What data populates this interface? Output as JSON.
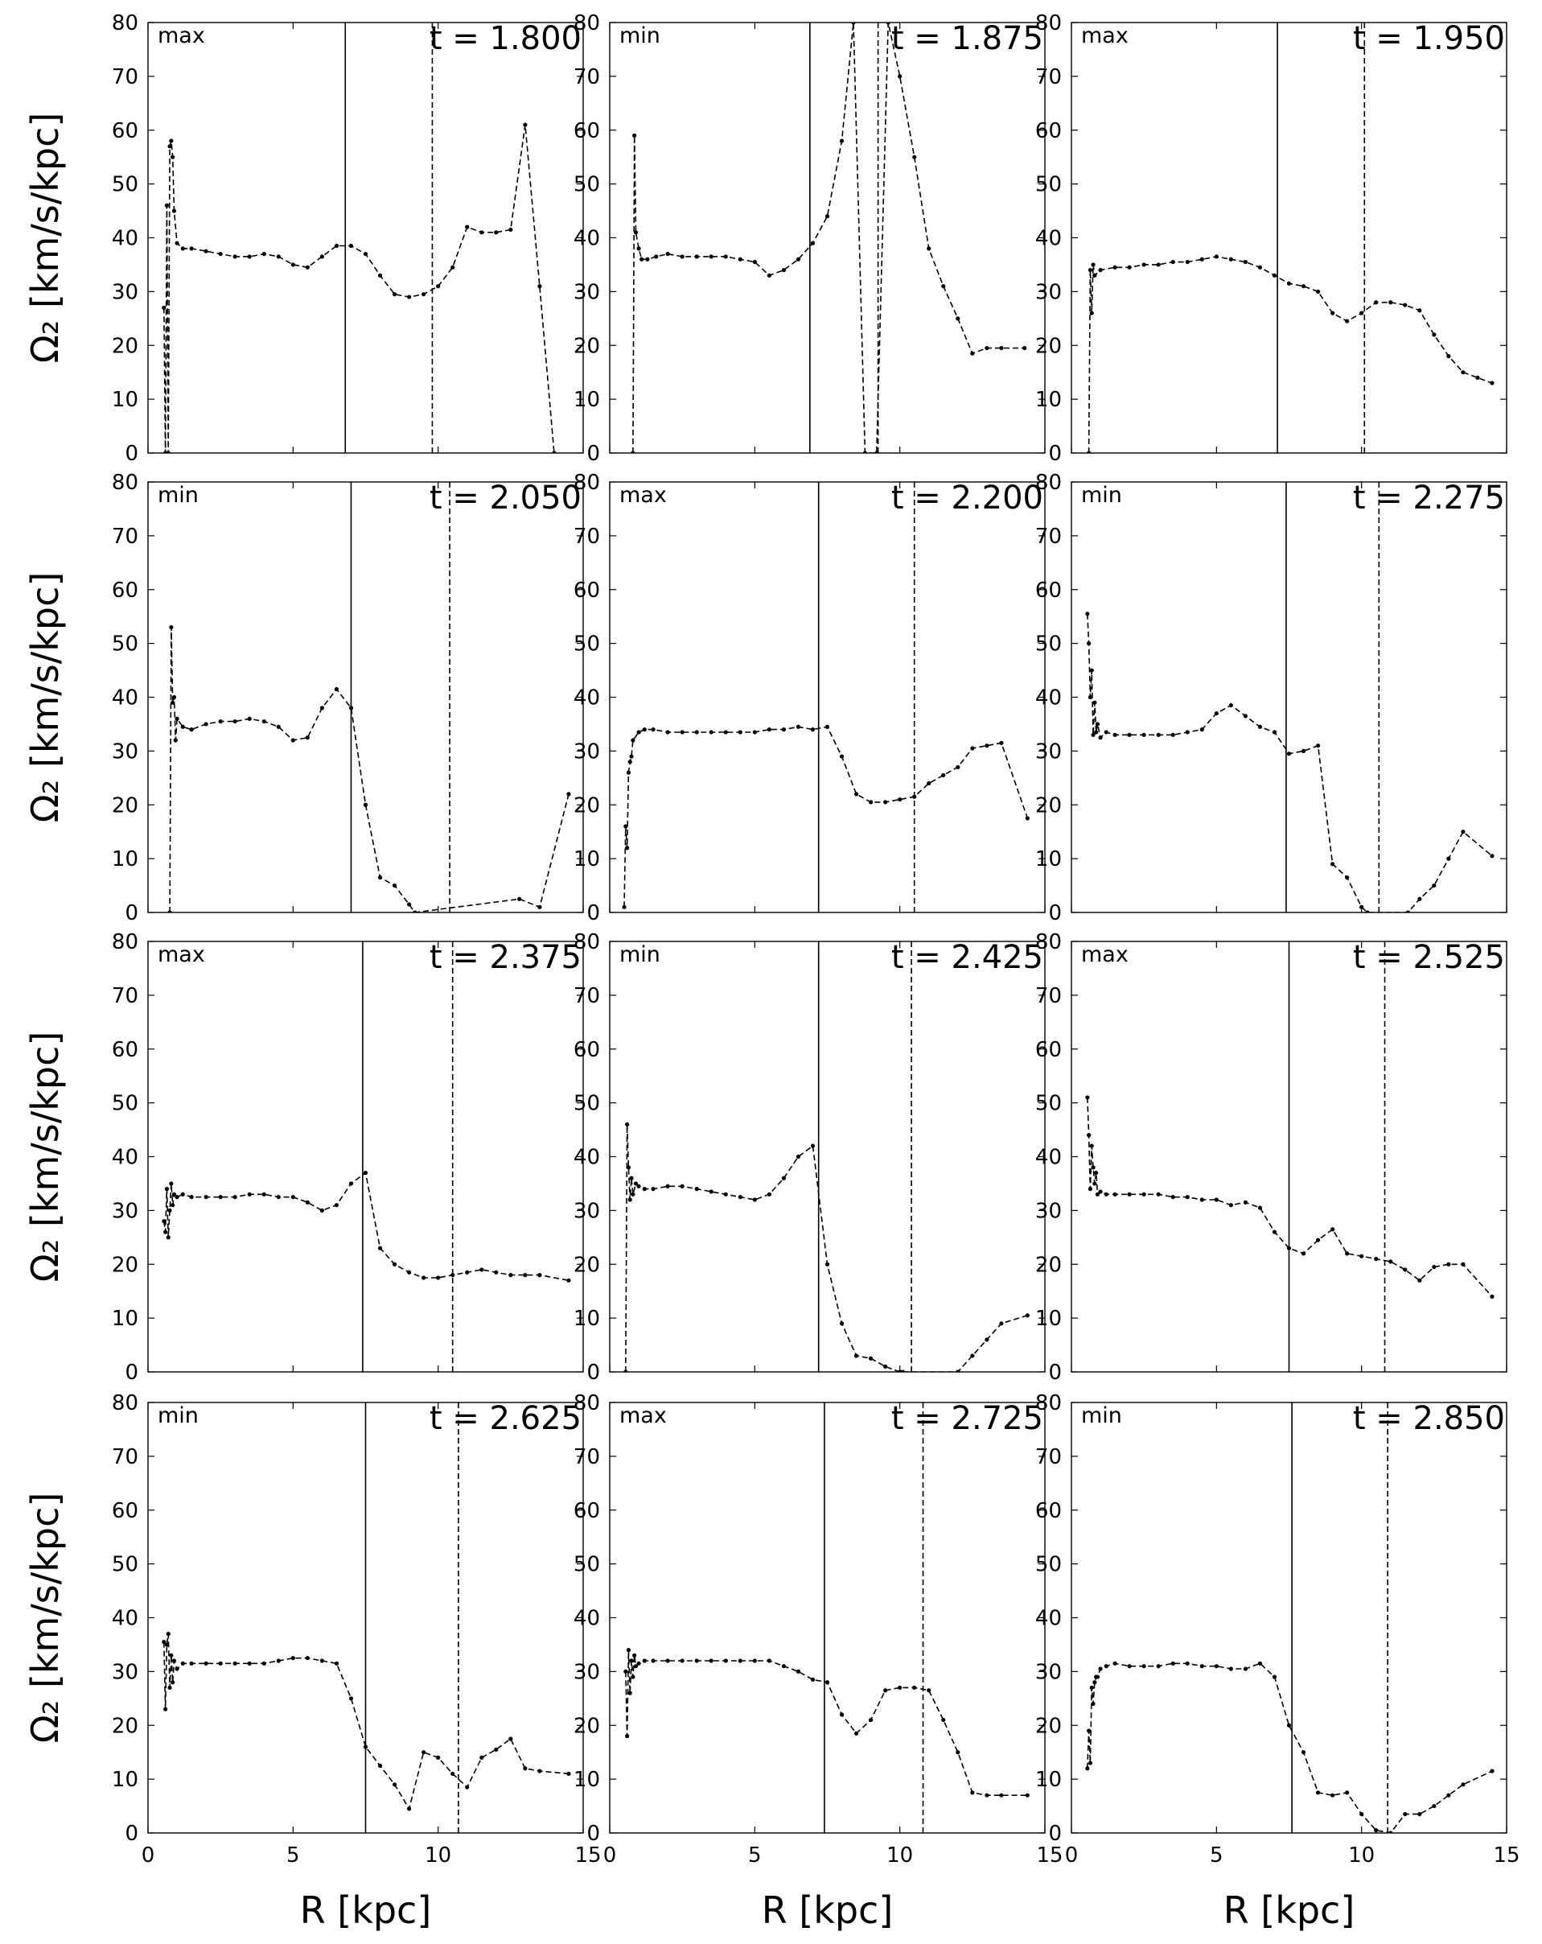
{
  "figure": {
    "ylabel": "Ω₂ [km/s/kpc]",
    "xlabel": "R [kpc]"
  },
  "chart_data": [
    {
      "type": "line",
      "panel_label": "max",
      "time_label": "t = 1.800",
      "xlim": [
        0,
        15
      ],
      "ylim": [
        0,
        80
      ],
      "xticks": [
        0,
        5,
        10,
        15
      ],
      "yticks": [
        0,
        10,
        20,
        30,
        40,
        50,
        60,
        70,
        80
      ],
      "vlines": {
        "solid": 6.8,
        "dashed": 9.8
      },
      "x": [
        0.55,
        0.6,
        0.65,
        0.7,
        0.75,
        0.8,
        0.85,
        0.9,
        1.0,
        1.2,
        1.5,
        2,
        2.5,
        3,
        3.5,
        4,
        4.5,
        5,
        5.5,
        6,
        6.5,
        7,
        7.5,
        8,
        8.5,
        9,
        9.5,
        10,
        10.5,
        11,
        11.5,
        12,
        12.5,
        13,
        13.5,
        14
      ],
      "y": [
        27,
        0,
        46,
        0,
        57,
        58,
        55,
        45,
        39,
        38,
        38,
        37.5,
        37,
        36.5,
        36.5,
        37,
        36.5,
        35,
        34.5,
        36.5,
        38.5,
        38.5,
        37,
        33,
        29.5,
        29,
        29.5,
        31,
        34.5,
        42,
        41,
        41,
        41.5,
        61,
        31,
        0
      ]
    },
    {
      "type": "line",
      "panel_label": "min",
      "time_label": "t = 1.875",
      "xlim": [
        0,
        15
      ],
      "ylim": [
        0,
        80
      ],
      "xticks": [
        0,
        5,
        10,
        15
      ],
      "yticks": [
        0,
        10,
        20,
        30,
        40,
        50,
        60,
        70,
        80
      ],
      "vlines": {
        "solid": 6.9,
        "dashed": 9.25
      },
      "x": [
        0.8,
        0.85,
        0.9,
        1.0,
        1.1,
        1.3,
        1.6,
        2,
        2.5,
        3,
        3.5,
        4,
        4.5,
        5,
        5.5,
        6,
        6.5,
        7,
        7.5,
        8,
        8.4,
        8.8,
        9.2,
        9.6,
        10,
        10.5,
        11,
        11.5,
        12,
        12.5,
        13,
        13.5,
        14.3
      ],
      "y": [
        0,
        59,
        41,
        38,
        36,
        36,
        36.5,
        37,
        36.5,
        36.5,
        36.5,
        36.5,
        36,
        35.5,
        33,
        34,
        36,
        39,
        44,
        58,
        80,
        0,
        0,
        80,
        70,
        55,
        38,
        31,
        25,
        18.5,
        19.5,
        19.5,
        19.5
      ]
    },
    {
      "type": "line",
      "panel_label": "max",
      "time_label": "t = 1.950",
      "xlim": [
        0,
        15
      ],
      "ylim": [
        0,
        80
      ],
      "xticks": [
        0,
        5,
        10,
        15
      ],
      "yticks": [
        0,
        10,
        20,
        30,
        40,
        50,
        60,
        70,
        80
      ],
      "vlines": {
        "solid": 7.1,
        "dashed": 10.1
      },
      "x": [
        0.6,
        0.65,
        0.7,
        0.75,
        0.8,
        1.0,
        1.5,
        2,
        2.5,
        3,
        3.5,
        4,
        4.5,
        5,
        5.5,
        6,
        6.5,
        7,
        7.5,
        8,
        8.5,
        9,
        9.5,
        10,
        10.5,
        11,
        11.5,
        12,
        12.5,
        13,
        13.5,
        14,
        14.5
      ],
      "y": [
        0,
        34,
        26,
        35,
        33,
        34,
        34.5,
        34.5,
        35,
        35,
        35.5,
        35.5,
        36,
        36.5,
        36,
        35.5,
        34.5,
        33,
        31.5,
        31,
        30,
        26,
        24.5,
        26,
        28,
        28,
        27.5,
        26.5,
        22,
        18,
        15,
        14,
        13
      ]
    },
    {
      "type": "line",
      "panel_label": "min",
      "time_label": "t = 2.050",
      "xlim": [
        0,
        15
      ],
      "ylim": [
        0,
        80
      ],
      "xticks": [
        0,
        5,
        10,
        15
      ],
      "yticks": [
        0,
        10,
        20,
        30,
        40,
        50,
        60,
        70,
        80
      ],
      "vlines": {
        "solid": 7.0,
        "dashed": 10.4
      },
      "x": [
        0.75,
        0.8,
        0.85,
        0.9,
        0.95,
        1.0,
        1.2,
        1.5,
        2,
        2.5,
        3,
        3.5,
        4,
        4.5,
        5,
        5.5,
        6,
        6.5,
        7,
        7.5,
        8,
        8.5,
        9,
        9.2,
        12.8,
        13.5,
        14.5
      ],
      "y": [
        0,
        53,
        39,
        40,
        32,
        36,
        34.5,
        34,
        35,
        35.5,
        35.5,
        36,
        35.5,
        34.5,
        32,
        32.5,
        38,
        41.5,
        38,
        20,
        6.5,
        5,
        1.5,
        0,
        2.5,
        1,
        22
      ]
    },
    {
      "type": "line",
      "panel_label": "max",
      "time_label": "t = 2.200",
      "xlim": [
        0,
        15
      ],
      "ylim": [
        0,
        80
      ],
      "xticks": [
        0,
        5,
        10,
        15
      ],
      "yticks": [
        0,
        10,
        20,
        30,
        40,
        50,
        60,
        70,
        80
      ],
      "vlines": {
        "solid": 7.2,
        "dashed": 10.5
      },
      "x": [
        0.5,
        0.55,
        0.6,
        0.65,
        0.7,
        0.75,
        0.8,
        1.0,
        1.2,
        1.5,
        2,
        2.5,
        3,
        3.5,
        4,
        4.5,
        5,
        5.5,
        6,
        6.5,
        7,
        7.5,
        8,
        8.5,
        9,
        9.5,
        10,
        10.5,
        11,
        11.5,
        12,
        12.5,
        13,
        13.5,
        14.4
      ],
      "y": [
        1,
        16,
        12,
        26,
        28,
        29,
        32,
        33.5,
        34,
        34,
        33.5,
        33.5,
        33.5,
        33.5,
        33.5,
        33.5,
        33.5,
        34,
        34,
        34.5,
        34,
        34.5,
        29,
        22,
        20.5,
        20.5,
        21,
        21.5,
        24,
        25.5,
        27,
        30.5,
        31,
        31.5,
        17.5
      ]
    },
    {
      "type": "line",
      "panel_label": "min",
      "time_label": "t = 2.275",
      "xlim": [
        0,
        15
      ],
      "ylim": [
        0,
        80
      ],
      "xticks": [
        0,
        5,
        10,
        15
      ],
      "yticks": [
        0,
        10,
        20,
        30,
        40,
        50,
        60,
        70,
        80
      ],
      "vlines": {
        "solid": 7.4,
        "dashed": 10.6
      },
      "x": [
        0.55,
        0.6,
        0.65,
        0.7,
        0.75,
        0.8,
        0.85,
        0.9,
        1.0,
        1.2,
        1.5,
        2,
        2.5,
        3,
        3.5,
        4,
        4.5,
        5,
        5.5,
        6,
        6.5,
        7,
        7.5,
        8,
        8.5,
        9,
        9.5,
        10,
        10.2,
        11.6,
        12,
        12.5,
        13,
        13.5,
        14.5
      ],
      "y": [
        55.5,
        50,
        40,
        45,
        33,
        39,
        33.5,
        35,
        32.5,
        33.5,
        33,
        33,
        33,
        33,
        33,
        33.5,
        34,
        37,
        38.5,
        36.5,
        34.5,
        33.5,
        29.5,
        30,
        31,
        9,
        6.5,
        1,
        0,
        0,
        2.5,
        5,
        10,
        15,
        10.5
      ]
    },
    {
      "type": "line",
      "panel_label": "max",
      "time_label": "t = 2.375",
      "xlim": [
        0,
        15
      ],
      "ylim": [
        0,
        80
      ],
      "xticks": [
        0,
        5,
        10,
        15
      ],
      "yticks": [
        0,
        10,
        20,
        30,
        40,
        50,
        60,
        70,
        80
      ],
      "vlines": {
        "solid": 7.4,
        "dashed": 10.5
      },
      "x": [
        0.55,
        0.6,
        0.65,
        0.7,
        0.75,
        0.8,
        0.85,
        0.9,
        1.0,
        1.2,
        1.5,
        2,
        2.5,
        3,
        3.5,
        4,
        4.5,
        5,
        5.5,
        6,
        6.5,
        7,
        7.5,
        8,
        8.5,
        9,
        9.5,
        10,
        10.5,
        11,
        11.5,
        12,
        12.5,
        13,
        13.5,
        14.5
      ],
      "y": [
        28,
        26,
        34,
        25,
        30,
        35,
        31,
        33,
        32.5,
        33,
        32.5,
        32.5,
        32.5,
        32.5,
        33,
        33,
        32.5,
        32.5,
        31.5,
        30,
        31,
        35,
        37,
        23,
        20,
        18.5,
        17.5,
        17.5,
        18,
        18.5,
        19,
        18.5,
        18,
        18,
        18,
        17
      ]
    },
    {
      "type": "line",
      "panel_label": "min",
      "time_label": "t = 2.425",
      "xlim": [
        0,
        15
      ],
      "ylim": [
        0,
        80
      ],
      "xticks": [
        0,
        5,
        10,
        15
      ],
      "yticks": [
        0,
        10,
        20,
        30,
        40,
        50,
        60,
        70,
        80
      ],
      "vlines": {
        "solid": 7.2,
        "dashed": 10.4
      },
      "x": [
        0.55,
        0.6,
        0.65,
        0.7,
        0.75,
        0.8,
        0.9,
        1.0,
        1.2,
        1.5,
        2,
        2.5,
        3,
        3.5,
        4,
        4.5,
        5,
        5.5,
        6,
        6.5,
        7,
        7.5,
        8,
        8.5,
        9,
        9.5,
        10,
        10.1,
        12,
        12.5,
        13,
        13.5,
        14.4
      ],
      "y": [
        0,
        46,
        38,
        32,
        36,
        33,
        35,
        34.5,
        34,
        34,
        34.5,
        34.5,
        34,
        33.5,
        33,
        32.5,
        32,
        33,
        36,
        40,
        42,
        20,
        9,
        3,
        2.5,
        1,
        0,
        0,
        0,
        3,
        6,
        9,
        10.5
      ]
    },
    {
      "type": "line",
      "panel_label": "max",
      "time_label": "t = 2.525",
      "xlim": [
        0,
        15
      ],
      "ylim": [
        0,
        80
      ],
      "xticks": [
        0,
        5,
        10,
        15
      ],
      "yticks": [
        0,
        10,
        20,
        30,
        40,
        50,
        60,
        70,
        80
      ],
      "vlines": {
        "solid": 7.5,
        "dashed": 10.8
      },
      "x": [
        0.55,
        0.6,
        0.65,
        0.7,
        0.75,
        0.8,
        0.85,
        0.9,
        1.0,
        1.2,
        1.5,
        2,
        2.5,
        3,
        3.5,
        4,
        4.5,
        5,
        5.5,
        6,
        6.5,
        7,
        7.5,
        8,
        8.5,
        9,
        9.5,
        10,
        10.5,
        11,
        11.5,
        12,
        12.5,
        13,
        13.5,
        14.5
      ],
      "y": [
        51,
        44,
        34,
        42,
        38,
        35,
        37,
        33,
        33.5,
        33,
        33,
        33,
        33,
        33,
        32.5,
        32.5,
        32,
        32,
        31,
        31.5,
        30.5,
        26,
        23,
        22,
        24.5,
        26.5,
        22,
        21.5,
        21,
        20.5,
        19,
        17,
        19.5,
        20,
        20,
        14
      ]
    },
    {
      "type": "line",
      "panel_label": "min",
      "time_label": "t = 2.625",
      "xlim": [
        0,
        15
      ],
      "ylim": [
        0,
        80
      ],
      "xticks": [
        0,
        5,
        10,
        15
      ],
      "yticks": [
        0,
        10,
        20,
        30,
        40,
        50,
        60,
        70,
        80
      ],
      "vlines": {
        "solid": 7.5,
        "dashed": 10.7
      },
      "x": [
        0.55,
        0.6,
        0.65,
        0.7,
        0.75,
        0.8,
        0.85,
        0.9,
        1.0,
        1.2,
        1.5,
        2,
        2.5,
        3,
        3.5,
        4,
        4.5,
        5,
        5.5,
        6,
        6.5,
        7,
        7.5,
        8,
        8.5,
        9,
        9.5,
        10,
        10.5,
        11,
        11.5,
        12,
        12.5,
        13,
        13.5,
        14.5
      ],
      "y": [
        35.5,
        23,
        35,
        37,
        27,
        33,
        28,
        32,
        30.5,
        31.5,
        31.5,
        31.5,
        31.5,
        31.5,
        31.5,
        31.5,
        32,
        32.5,
        32.5,
        32,
        31.5,
        25,
        16,
        12.5,
        9,
        4.5,
        15,
        14,
        11,
        8.5,
        14,
        15.5,
        17.5,
        12,
        11.5,
        11
      ]
    },
    {
      "type": "line",
      "panel_label": "max",
      "time_label": "t = 2.725",
      "xlim": [
        0,
        15
      ],
      "ylim": [
        0,
        80
      ],
      "xticks": [
        0,
        5,
        10,
        15
      ],
      "yticks": [
        0,
        10,
        20,
        30,
        40,
        50,
        60,
        70,
        80
      ],
      "vlines": {
        "solid": 7.4,
        "dashed": 10.8
      },
      "x": [
        0.55,
        0.6,
        0.65,
        0.7,
        0.75,
        0.8,
        0.85,
        0.9,
        1.0,
        1.2,
        1.5,
        2,
        2.5,
        3,
        3.5,
        4,
        4.5,
        5,
        5.5,
        6,
        6.5,
        7,
        7.5,
        8,
        8.5,
        9,
        9.5,
        10,
        10.5,
        11,
        11.5,
        12,
        12.5,
        13,
        13.5,
        14.4
      ],
      "y": [
        30,
        18,
        34,
        26,
        32,
        29,
        33,
        31,
        31.5,
        32,
        32,
        32,
        32,
        32,
        32,
        32,
        32,
        32,
        32,
        31,
        30,
        28.5,
        28,
        22,
        18.5,
        21,
        26.5,
        27,
        27,
        26.5,
        21,
        15,
        7.5,
        7,
        7,
        7
      ]
    },
    {
      "type": "line",
      "panel_label": "min",
      "time_label": "t = 2.850",
      "xlim": [
        0,
        15
      ],
      "ylim": [
        0,
        80
      ],
      "xticks": [
        0,
        5,
        10,
        15
      ],
      "yticks": [
        0,
        10,
        20,
        30,
        40,
        50,
        60,
        70,
        80
      ],
      "vlines": {
        "solid": 7.6,
        "dashed": 10.9
      },
      "x": [
        0.55,
        0.6,
        0.65,
        0.7,
        0.75,
        0.8,
        0.85,
        0.9,
        1.0,
        1.2,
        1.5,
        2,
        2.5,
        3,
        3.5,
        4,
        4.5,
        5,
        5.5,
        6,
        6.5,
        7,
        7.5,
        8,
        8.5,
        9,
        9.5,
        10,
        10.5,
        11,
        11.5,
        12,
        12.5,
        13,
        13.5,
        14.5
      ],
      "y": [
        12,
        19,
        13,
        27,
        24,
        28,
        29,
        29,
        30.5,
        31,
        31.5,
        31,
        31,
        31,
        31.5,
        31.5,
        31,
        31,
        30.5,
        30.5,
        31.5,
        29,
        20,
        15,
        7.5,
        7,
        7.5,
        3.5,
        0.5,
        0,
        3.5,
        3.5,
        5,
        7,
        9,
        11.5
      ]
    }
  ]
}
